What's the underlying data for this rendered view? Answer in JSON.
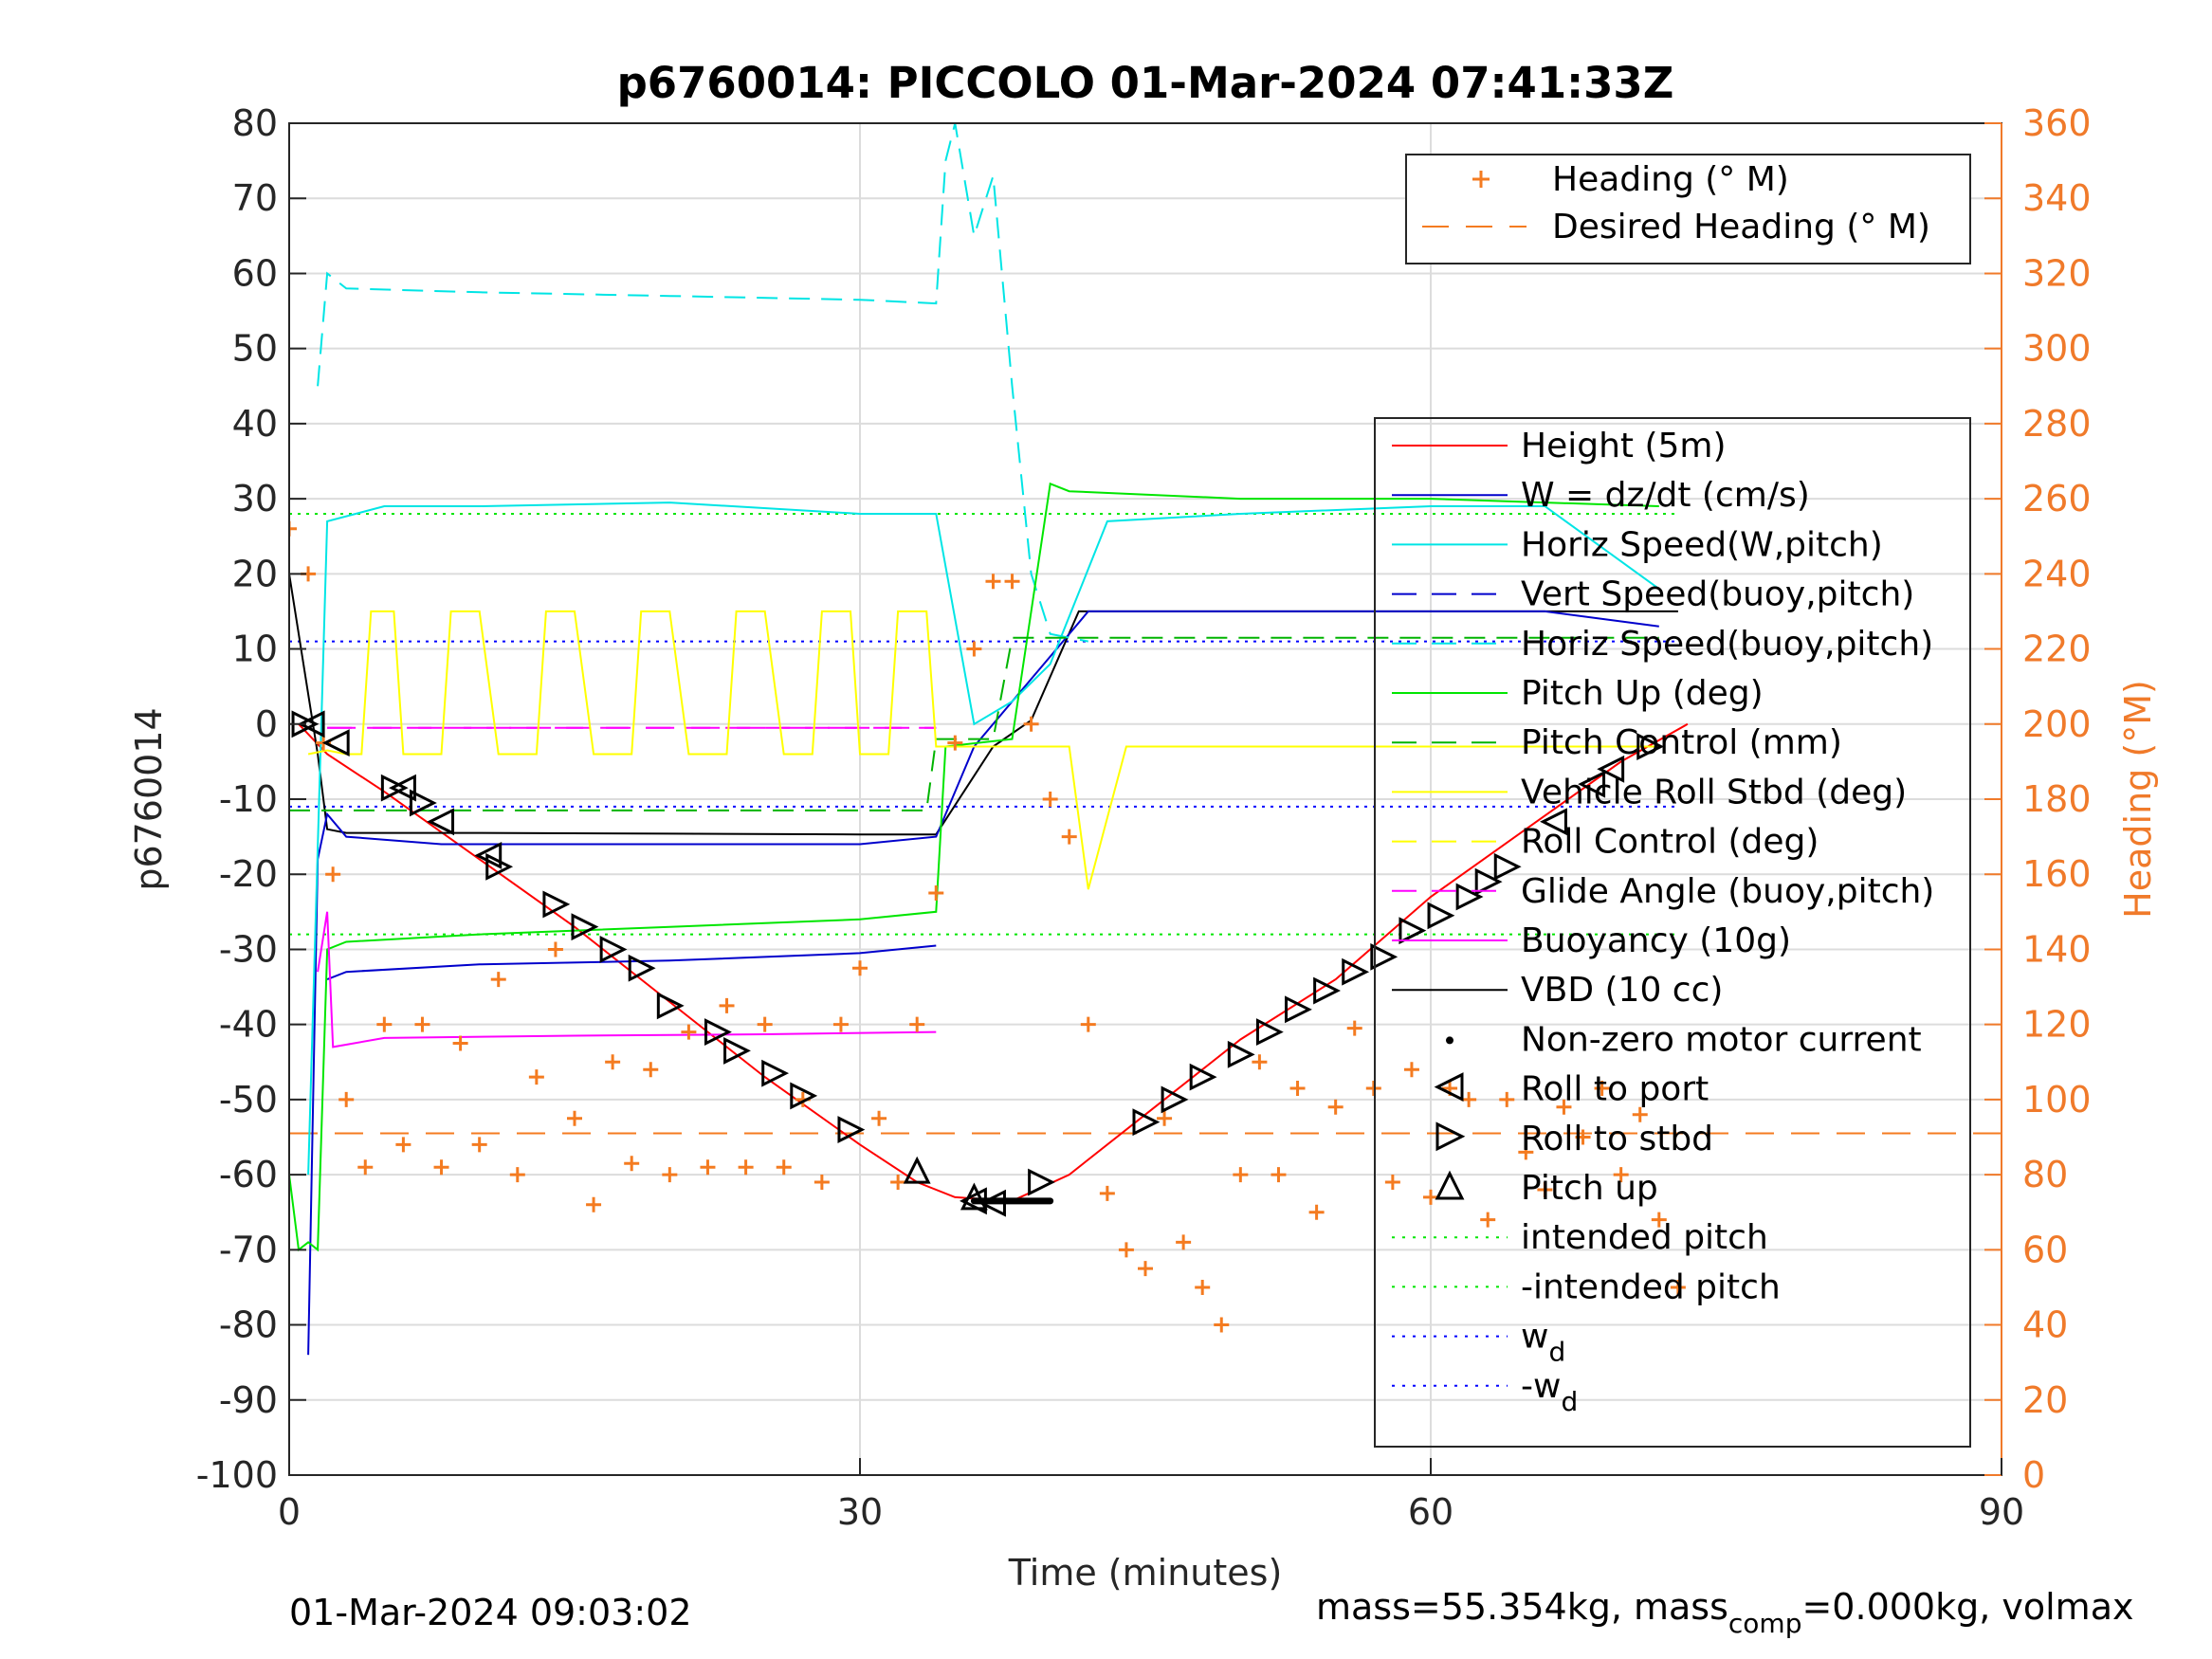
{
  "chart_data": {
    "type": "line",
    "title": "p6760014: PICCOLO 01-Mar-2024 07:41:33Z",
    "xlabel": "Time (minutes)",
    "ylabel": "p6760014",
    "y2label": "Heading (°M)",
    "xlim": [
      0,
      90
    ],
    "ylim": [
      -100,
      80
    ],
    "y2lim": [
      0,
      360
    ],
    "xticks": [
      "0",
      "30",
      "60",
      "90"
    ],
    "yticks": [
      "80",
      "70",
      "60",
      "50",
      "40",
      "30",
      "20",
      "10",
      "0",
      "-10",
      "-20",
      "-30",
      "-40",
      "-50",
      "-60",
      "-70",
      "-80",
      "-90",
      "-100"
    ],
    "y2ticks": [
      "360",
      "340",
      "320",
      "300",
      "280",
      "260",
      "240",
      "220",
      "200",
      "180",
      "160",
      "140",
      "120",
      "100",
      "80",
      "60",
      "40",
      "20",
      "0"
    ],
    "grid": true,
    "legend_top": {
      "placement": "top-right",
      "entries": [
        {
          "label": "Heading (° M)",
          "color": "#f47b20",
          "marker": "+"
        },
        {
          "label": "Desired Heading (° M)",
          "color": "#f47b20",
          "style": "dashed"
        }
      ]
    },
    "legend_main": {
      "placement": "right",
      "entries": [
        {
          "label": "Height (5m)",
          "color": "#ff0000",
          "style": "solid"
        },
        {
          "label": "W = dz/dt (cm/s)",
          "color": "#0000cc",
          "style": "solid"
        },
        {
          "label": "Horiz Speed(W,pitch)",
          "color": "#00e5e5",
          "style": "solid"
        },
        {
          "label": "Vert Speed(buoy,pitch)",
          "color": "#0000cc",
          "style": "dashed"
        },
        {
          "label": "Horiz Speed(buoy,pitch)",
          "color": "#00e5e5",
          "style": "dashed"
        },
        {
          "label": "Pitch Up (deg)",
          "color": "#00e600",
          "style": "solid"
        },
        {
          "label": "Pitch Control (mm)",
          "color": "#00b400",
          "style": "dashed"
        },
        {
          "label": "Vehicle Roll Stbd (deg)",
          "color": "#ffff00",
          "style": "solid"
        },
        {
          "label": "Roll Control (deg)",
          "color": "#ffff00",
          "style": "dashed"
        },
        {
          "label": "Glide Angle (buoy,pitch)",
          "color": "#ff00ff",
          "style": "dashed"
        },
        {
          "label": "Buoyancy (10g)",
          "color": "#ff00ff",
          "style": "solid"
        },
        {
          "label": "VBD (10 cc)",
          "color": "#000000",
          "style": "solid"
        },
        {
          "label": "Non-zero motor current",
          "color": "#000000",
          "marker": "dot"
        },
        {
          "label": "Roll to port",
          "color": "#000000",
          "marker": "triangle-left"
        },
        {
          "label": "Roll to stbd",
          "color": "#000000",
          "marker": "triangle-right"
        },
        {
          "label": "Pitch up",
          "color": "#000000",
          "marker": "triangle-up"
        },
        {
          "label": "intended pitch",
          "color": "#00e600",
          "style": "dotted"
        },
        {
          "label": "-intended pitch",
          "color": "#00e600",
          "style": "dotted"
        },
        {
          "label": "w",
          "sub": "d",
          "color": "#0000ff",
          "style": "dotted"
        },
        {
          "label": "-w",
          "sub": "d",
          "color": "#0000ff",
          "style": "dotted"
        }
      ]
    },
    "reference_lines": {
      "intended_pitch": 28,
      "neg_intended_pitch": -28,
      "wd": 11,
      "neg_wd": -11,
      "pitch_control_dive": -11.5,
      "pitch_control_climb": 11.5,
      "glide_angle_dive": -0.5,
      "desired_heading": 91
    },
    "series": [
      {
        "name": "Height (5m)",
        "x": [
          0.5,
          2,
          5,
          10,
          15,
          20,
          25,
          30,
          33,
          35,
          38,
          41,
          45,
          50,
          55,
          60,
          65,
          70,
          73.5
        ],
        "y": [
          0,
          -4,
          -9,
          -18,
          -27,
          -37,
          -47,
          -56,
          -61,
          -63,
          -63.5,
          -60,
          -52,
          -42,
          -34,
          -23,
          -14,
          -5,
          0
        ]
      },
      {
        "name": "VBD (10 cc)",
        "x": [
          0,
          1.5,
          2,
          3,
          10,
          20,
          30,
          34,
          37,
          39,
          41.5,
          50,
          60,
          66,
          73
        ],
        "y": [
          20,
          -4,
          -14,
          -14.5,
          -14.5,
          -14.6,
          -14.7,
          -14.7,
          -3,
          0.5,
          15,
          15,
          15,
          15,
          15
        ]
      },
      {
        "name": "W = dz/dt (cm/s)",
        "x": [
          1,
          1.5,
          2,
          3,
          8,
          15,
          20,
          25,
          30,
          34,
          36,
          38,
          40,
          42,
          50,
          60,
          66,
          72
        ],
        "y": [
          -84,
          -18,
          -12,
          -15,
          -16,
          -16,
          -16,
          -16,
          -16,
          -15,
          -3,
          3,
          9,
          15,
          15,
          15,
          15,
          13
        ]
      },
      {
        "name": "Vert Speed(buoy,pitch)",
        "x": [
          2,
          3,
          10,
          20,
          30,
          34
        ],
        "y": [
          -34,
          -33,
          -32,
          -31.5,
          -30.5,
          -29.5
        ]
      },
      {
        "name": "Horiz Speed(W,pitch)",
        "x": [
          1,
          2,
          5,
          10,
          20,
          30,
          34,
          36,
          38,
          40,
          43,
          50,
          60,
          66,
          72
        ],
        "y": [
          -60,
          27,
          29,
          29,
          29.5,
          28,
          28,
          0,
          3,
          8,
          27,
          28,
          29,
          29,
          18
        ]
      },
      {
        "name": "Horiz Speed(buoy,pitch)",
        "x": [
          1.5,
          2,
          3,
          10,
          20,
          30,
          34,
          34.5,
          35,
          36,
          37,
          38,
          39,
          40,
          42
        ],
        "y": [
          45,
          60,
          58,
          57.5,
          57,
          56.5,
          56,
          75,
          80,
          65,
          73,
          45,
          20,
          12,
          11
        ]
      },
      {
        "name": "Pitch Up (deg)",
        "x": [
          0,
          0.5,
          1,
          1.5,
          2,
          3,
          10,
          20,
          30,
          34,
          34.5,
          38,
          40,
          41,
          50,
          60,
          66,
          72
        ],
        "y": [
          -60,
          -70,
          -69,
          -70,
          -30,
          -29,
          -28,
          -27,
          -26,
          -25,
          -3,
          -2,
          32,
          31,
          30,
          30,
          29.5,
          29
        ]
      },
      {
        "name": "Pitch Control (mm)",
        "x": [
          0,
          33.5,
          34,
          37,
          38,
          72
        ],
        "y": [
          -11.5,
          -11.5,
          -2,
          -2,
          11.5,
          11.5
        ]
      },
      {
        "name": "Buoyancy (10g)",
        "x": [
          1.5,
          2,
          2.3,
          5,
          15,
          25,
          34
        ],
        "y": [
          -33,
          -25,
          -43,
          -41.8,
          -41.5,
          -41.3,
          -41
        ]
      },
      {
        "name": "Glide Angle (buoy,pitch)",
        "x": [
          2,
          34
        ],
        "y": [
          -0.5,
          -0.5
        ]
      },
      {
        "name": "Vehicle Roll Stbd (deg)",
        "x": [
          1,
          2,
          3,
          3.8,
          4.3,
          5.5,
          6,
          8,
          8.5,
          10,
          11,
          13,
          13.5,
          15,
          16,
          18,
          18.5,
          20,
          21,
          23,
          23.5,
          25,
          26,
          27.5,
          28,
          29.5,
          30,
          31.5,
          32,
          33.5,
          34,
          38,
          38.5,
          40,
          41,
          42,
          44,
          46,
          48,
          50,
          52,
          54,
          56,
          58,
          60,
          62,
          64,
          66,
          68,
          70,
          72
        ],
        "y": [
          -4,
          -3.5,
          -4,
          -4,
          15,
          15,
          -4,
          -4,
          15,
          15,
          -4,
          -4,
          15,
          15,
          -4,
          -4,
          15,
          15,
          -4,
          -4,
          15,
          15,
          -4,
          -4,
          15,
          15,
          -4,
          -4,
          15,
          15,
          -3,
          -3,
          -3,
          -3,
          -3,
          -22,
          -3,
          -3,
          -3,
          -3,
          -3,
          -3,
          -3,
          -3,
          -3,
          -3,
          -3,
          -3,
          -3,
          -3,
          -3
        ]
      },
      {
        "name": "Heading (° M)",
        "x": [
          0,
          1,
          1.8,
          2.3,
          3,
          4,
          5,
          6,
          7,
          8,
          9,
          10,
          11,
          12,
          13,
          14,
          15,
          16,
          17,
          18,
          19,
          20,
          21,
          22,
          23,
          24,
          25,
          26,
          27,
          28,
          29,
          30,
          31,
          32,
          33,
          34,
          35,
          36,
          37,
          38,
          39,
          40,
          41,
          42,
          43,
          44,
          45,
          46,
          47,
          48,
          49,
          50,
          51,
          52,
          53,
          54,
          55,
          56,
          57,
          58,
          59,
          60,
          61,
          62,
          63,
          64,
          65,
          66,
          67,
          68,
          69,
          70,
          71,
          72,
          73
        ],
        "y": [
          252,
          240,
          195,
          160,
          100,
          82,
          120,
          88,
          120,
          82,
          115,
          88,
          132,
          80,
          106,
          140,
          95,
          72,
          110,
          83,
          108,
          80,
          118,
          82,
          125,
          82,
          120,
          82,
          100,
          78,
          120,
          135,
          95,
          78,
          120,
          155,
          195,
          220,
          238,
          238,
          200,
          180,
          170,
          120,
          75,
          60,
          55,
          95,
          62,
          50,
          40,
          80,
          110,
          80,
          103,
          70,
          98,
          119,
          103,
          78,
          108,
          74,
          103,
          100,
          68,
          100,
          86,
          76,
          98,
          90,
          103,
          80,
          96,
          68,
          50
        ]
      }
    ],
    "markers": {
      "roll_to_port": {
        "x": [
          1.2,
          2.5,
          6,
          8,
          10.5,
          36,
          37,
          66.5,
          68.5,
          69.5
        ],
        "y": [
          0,
          -2.5,
          -8.5,
          -13,
          -17.5,
          -63.5,
          -63.8,
          -13,
          -8,
          -6
        ]
      },
      "roll_to_stbd": {
        "x": [
          0.8,
          5.5,
          7,
          11,
          14,
          15.5,
          17,
          18.5,
          20,
          22.5,
          23.5,
          25.5,
          27,
          29.5,
          39.5,
          45,
          46.5,
          48,
          50,
          51.5,
          53,
          54.5,
          56,
          57.5,
          59,
          60.5,
          62,
          63,
          64,
          71.5
        ],
        "y": [
          0,
          -8.5,
          -10.5,
          -19,
          -24,
          -27,
          -30,
          -32.5,
          -37.5,
          -41,
          -43.5,
          -46.5,
          -49.5,
          -54,
          -61,
          -53,
          -50,
          -47,
          -44,
          -41,
          -38,
          -35.5,
          -33,
          -31,
          -27.5,
          -25.5,
          -23,
          -21,
          -19,
          -3
        ]
      },
      "pitch_up": {
        "x": [
          33,
          36
        ],
        "y": [
          -59.5,
          -63
        ]
      },
      "motor_current": {
        "x_start": 36,
        "x_end": 40,
        "y": -63.5
      }
    },
    "footer_left": "01-Mar-2024 09:03:02",
    "footer_right": {
      "text1": "mass=55.354kg, mass",
      "sub": "comp",
      "text2": "=0.000kg, volmax"
    }
  }
}
